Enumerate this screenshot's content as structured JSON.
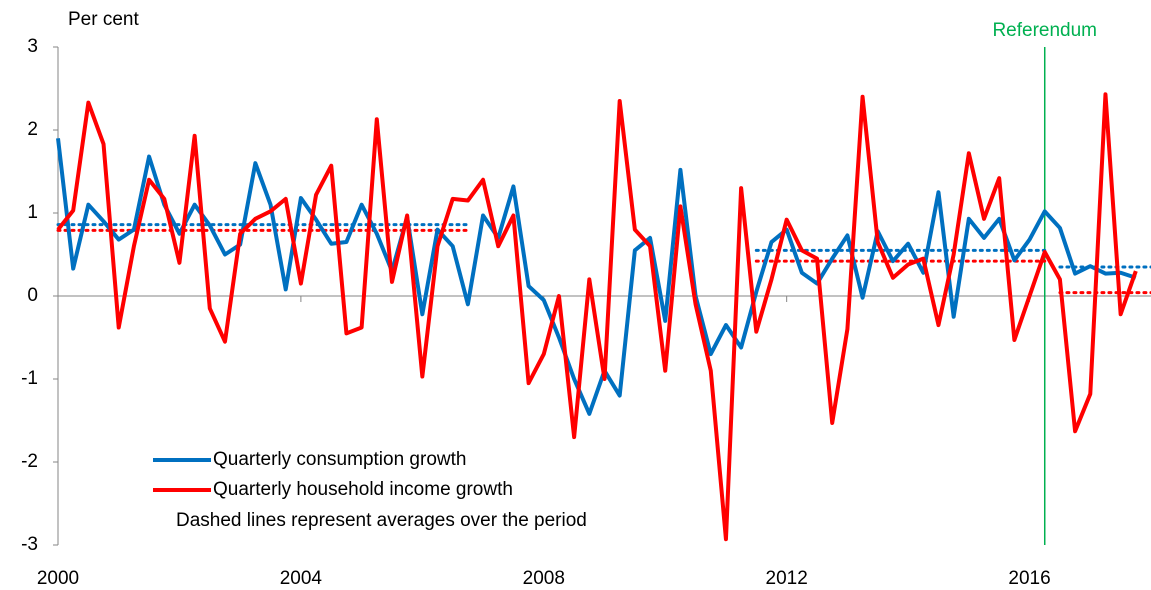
{
  "chart_data": {
    "type": "line",
    "y_label": "Per cent",
    "note": "Dashed lines represent averages over the period",
    "xlim": [
      2000,
      2018
    ],
    "xticks": [
      2000,
      2004,
      2008,
      2012,
      2016
    ],
    "ylim": [
      -3,
      3
    ],
    "yticks": [
      -3,
      -2,
      -1,
      0,
      1,
      2,
      3
    ],
    "x": [
      2000,
      2000.25,
      2000.5,
      2000.75,
      2001,
      2001.25,
      2001.5,
      2001.75,
      2002,
      2002.25,
      2002.5,
      2002.75,
      2003,
      2003.25,
      2003.5,
      2003.75,
      2004,
      2004.25,
      2004.5,
      2004.75,
      2005,
      2005.25,
      2005.5,
      2005.75,
      2006,
      2006.25,
      2006.5,
      2006.75,
      2007,
      2007.25,
      2007.5,
      2007.75,
      2008,
      2008.25,
      2008.5,
      2008.75,
      2009,
      2009.25,
      2009.5,
      2009.75,
      2010,
      2010.25,
      2010.5,
      2010.75,
      2011,
      2011.25,
      2011.5,
      2011.75,
      2012,
      2012.25,
      2012.5,
      2012.75,
      2013,
      2013.25,
      2013.5,
      2013.75,
      2014,
      2014.25,
      2014.5,
      2014.75,
      2015,
      2015.25,
      2015.5,
      2015.75,
      2016,
      2016.25,
      2016.5,
      2016.75,
      2017,
      2017.25,
      2017.5,
      2017.75
    ],
    "series": [
      {
        "name": "Quarterly consumption growth",
        "color": "#0070c0",
        "values": [
          1.9,
          0.33,
          1.1,
          0.9,
          0.68,
          0.8,
          1.68,
          1.1,
          0.75,
          1.1,
          0.85,
          0.5,
          0.62,
          1.6,
          1.1,
          0.08,
          1.18,
          0.92,
          0.63,
          0.65,
          1.1,
          0.75,
          0.3,
          0.95,
          -0.22,
          0.8,
          0.6,
          -0.1,
          0.97,
          0.7,
          1.32,
          0.12,
          -0.05,
          -0.5,
          -1.0,
          -1.42,
          -0.9,
          -1.2,
          0.55,
          0.7,
          -0.3,
          1.52,
          0.0,
          -0.7,
          -0.35,
          -0.62,
          0.05,
          0.65,
          0.8,
          0.28,
          0.15,
          0.45,
          0.73,
          -0.02,
          0.78,
          0.42,
          0.63,
          0.28,
          1.25,
          -0.25,
          0.93,
          0.7,
          0.93,
          0.43,
          0.68,
          1.02,
          0.82,
          0.27,
          0.36,
          0.27,
          0.28,
          0.22
        ],
        "averages": [
          {
            "x0": 2000,
            "x1": 2006.75,
            "value": 0.86
          },
          {
            "x0": 2011.5,
            "x1": 2016.25,
            "value": 0.55
          },
          {
            "x0": 2016.5,
            "x1": 2018,
            "value": 0.35
          }
        ]
      },
      {
        "name": "Quarterly household income growth",
        "color": "#ff0000",
        "values": [
          0.8,
          1.03,
          2.33,
          1.83,
          -0.38,
          0.6,
          1.4,
          1.17,
          0.4,
          1.93,
          -0.15,
          -0.55,
          0.75,
          0.93,
          1.02,
          1.17,
          0.15,
          1.22,
          1.57,
          -0.45,
          -0.38,
          2.13,
          0.17,
          0.97,
          -0.97,
          0.6,
          1.17,
          1.15,
          1.4,
          0.6,
          0.97,
          -1.05,
          -0.7,
          0.0,
          -1.7,
          0.2,
          -1.0,
          2.35,
          0.8,
          0.6,
          -0.9,
          1.08,
          -0.1,
          -0.9,
          -2.93,
          1.3,
          -0.43,
          0.2,
          0.92,
          0.55,
          0.45,
          -1.53,
          -0.4,
          2.4,
          0.65,
          0.22,
          0.38,
          0.45,
          -0.35,
          0.5,
          1.72,
          0.93,
          1.42,
          -0.53,
          0.0,
          0.53,
          0.2,
          -1.63,
          -1.18,
          2.43,
          -0.22,
          0.3
        ],
        "averages": [
          {
            "x0": 2000,
            "x1": 2006.75,
            "value": 0.79
          },
          {
            "x0": 2011.5,
            "x1": 2016.25,
            "value": 0.42
          },
          {
            "x0": 2016.5,
            "x1": 2018,
            "value": 0.04
          }
        ]
      }
    ],
    "annotation": {
      "label": "Referendum",
      "x": 2016.25,
      "color": "#00b050"
    }
  }
}
